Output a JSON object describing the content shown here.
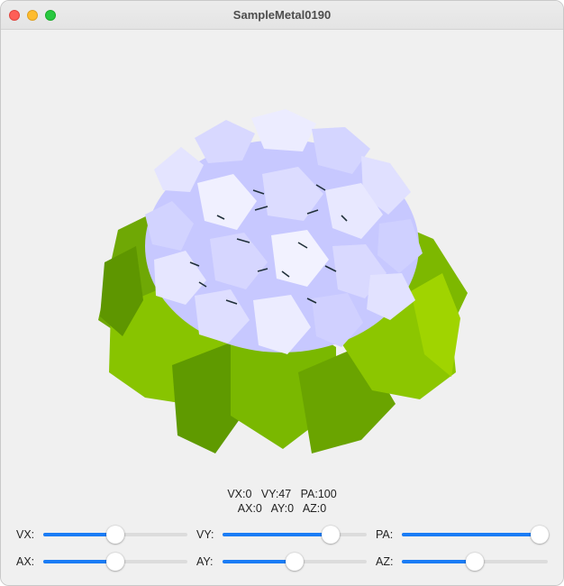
{
  "window": {
    "title": "SampleMetal0190"
  },
  "readout": {
    "line1": "VX:0   VY:47   PA:100",
    "line2": "AX:0   AY:0   AZ:0"
  },
  "sliders": [
    {
      "label": "VX:",
      "level": 0.5
    },
    {
      "label": "VY:",
      "level": 0.75
    },
    {
      "label": "PA:",
      "level": 1.0
    },
    {
      "label": "AX:",
      "level": 0.5
    },
    {
      "label": "AY:",
      "level": 0.5
    },
    {
      "label": "AZ:",
      "level": 0.5
    }
  ],
  "colors": {
    "accent": "#1a7cf5",
    "petal": "#c8c9ff",
    "leaf": "#8bc500"
  }
}
